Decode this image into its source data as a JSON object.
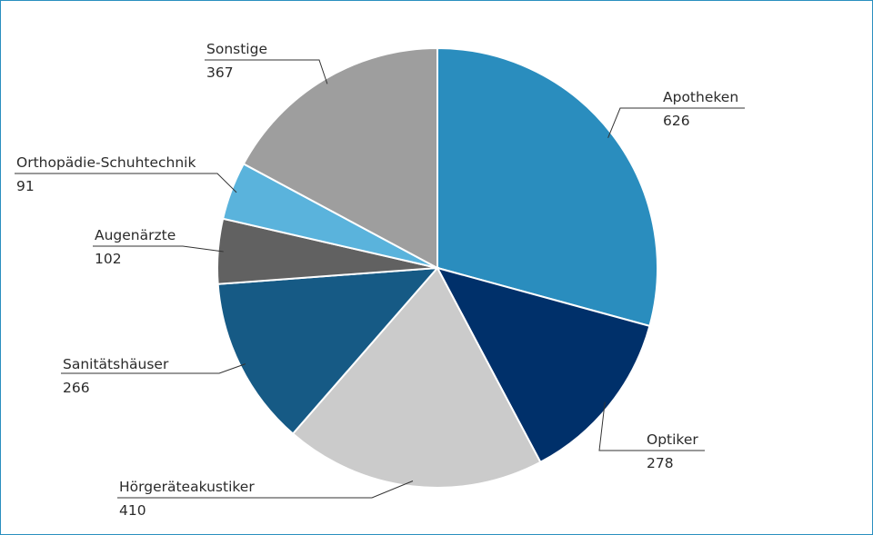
{
  "chart_data": {
    "type": "pie",
    "title": "",
    "start": "12 o'clock",
    "direction": "clockwise",
    "slices": [
      {
        "label": "Apotheken",
        "value": 626,
        "color": "#2a8dbe"
      },
      {
        "label": "Optiker",
        "value": 278,
        "color": "#00306a"
      },
      {
        "label": "Hörgeräteakustiker",
        "value": 410,
        "color": "#cbcbcb"
      },
      {
        "label": "Sanitätshäuser",
        "value": 266,
        "color": "#165a85"
      },
      {
        "label": "Augenärzte",
        "value": 102,
        "color": "#616161"
      },
      {
        "label": "Orthopädie-Schuhtechnik",
        "value": 91,
        "color": "#5ab3dc"
      },
      {
        "label": "Sonstige",
        "value": 367,
        "color": "#9e9e9e"
      }
    ]
  }
}
